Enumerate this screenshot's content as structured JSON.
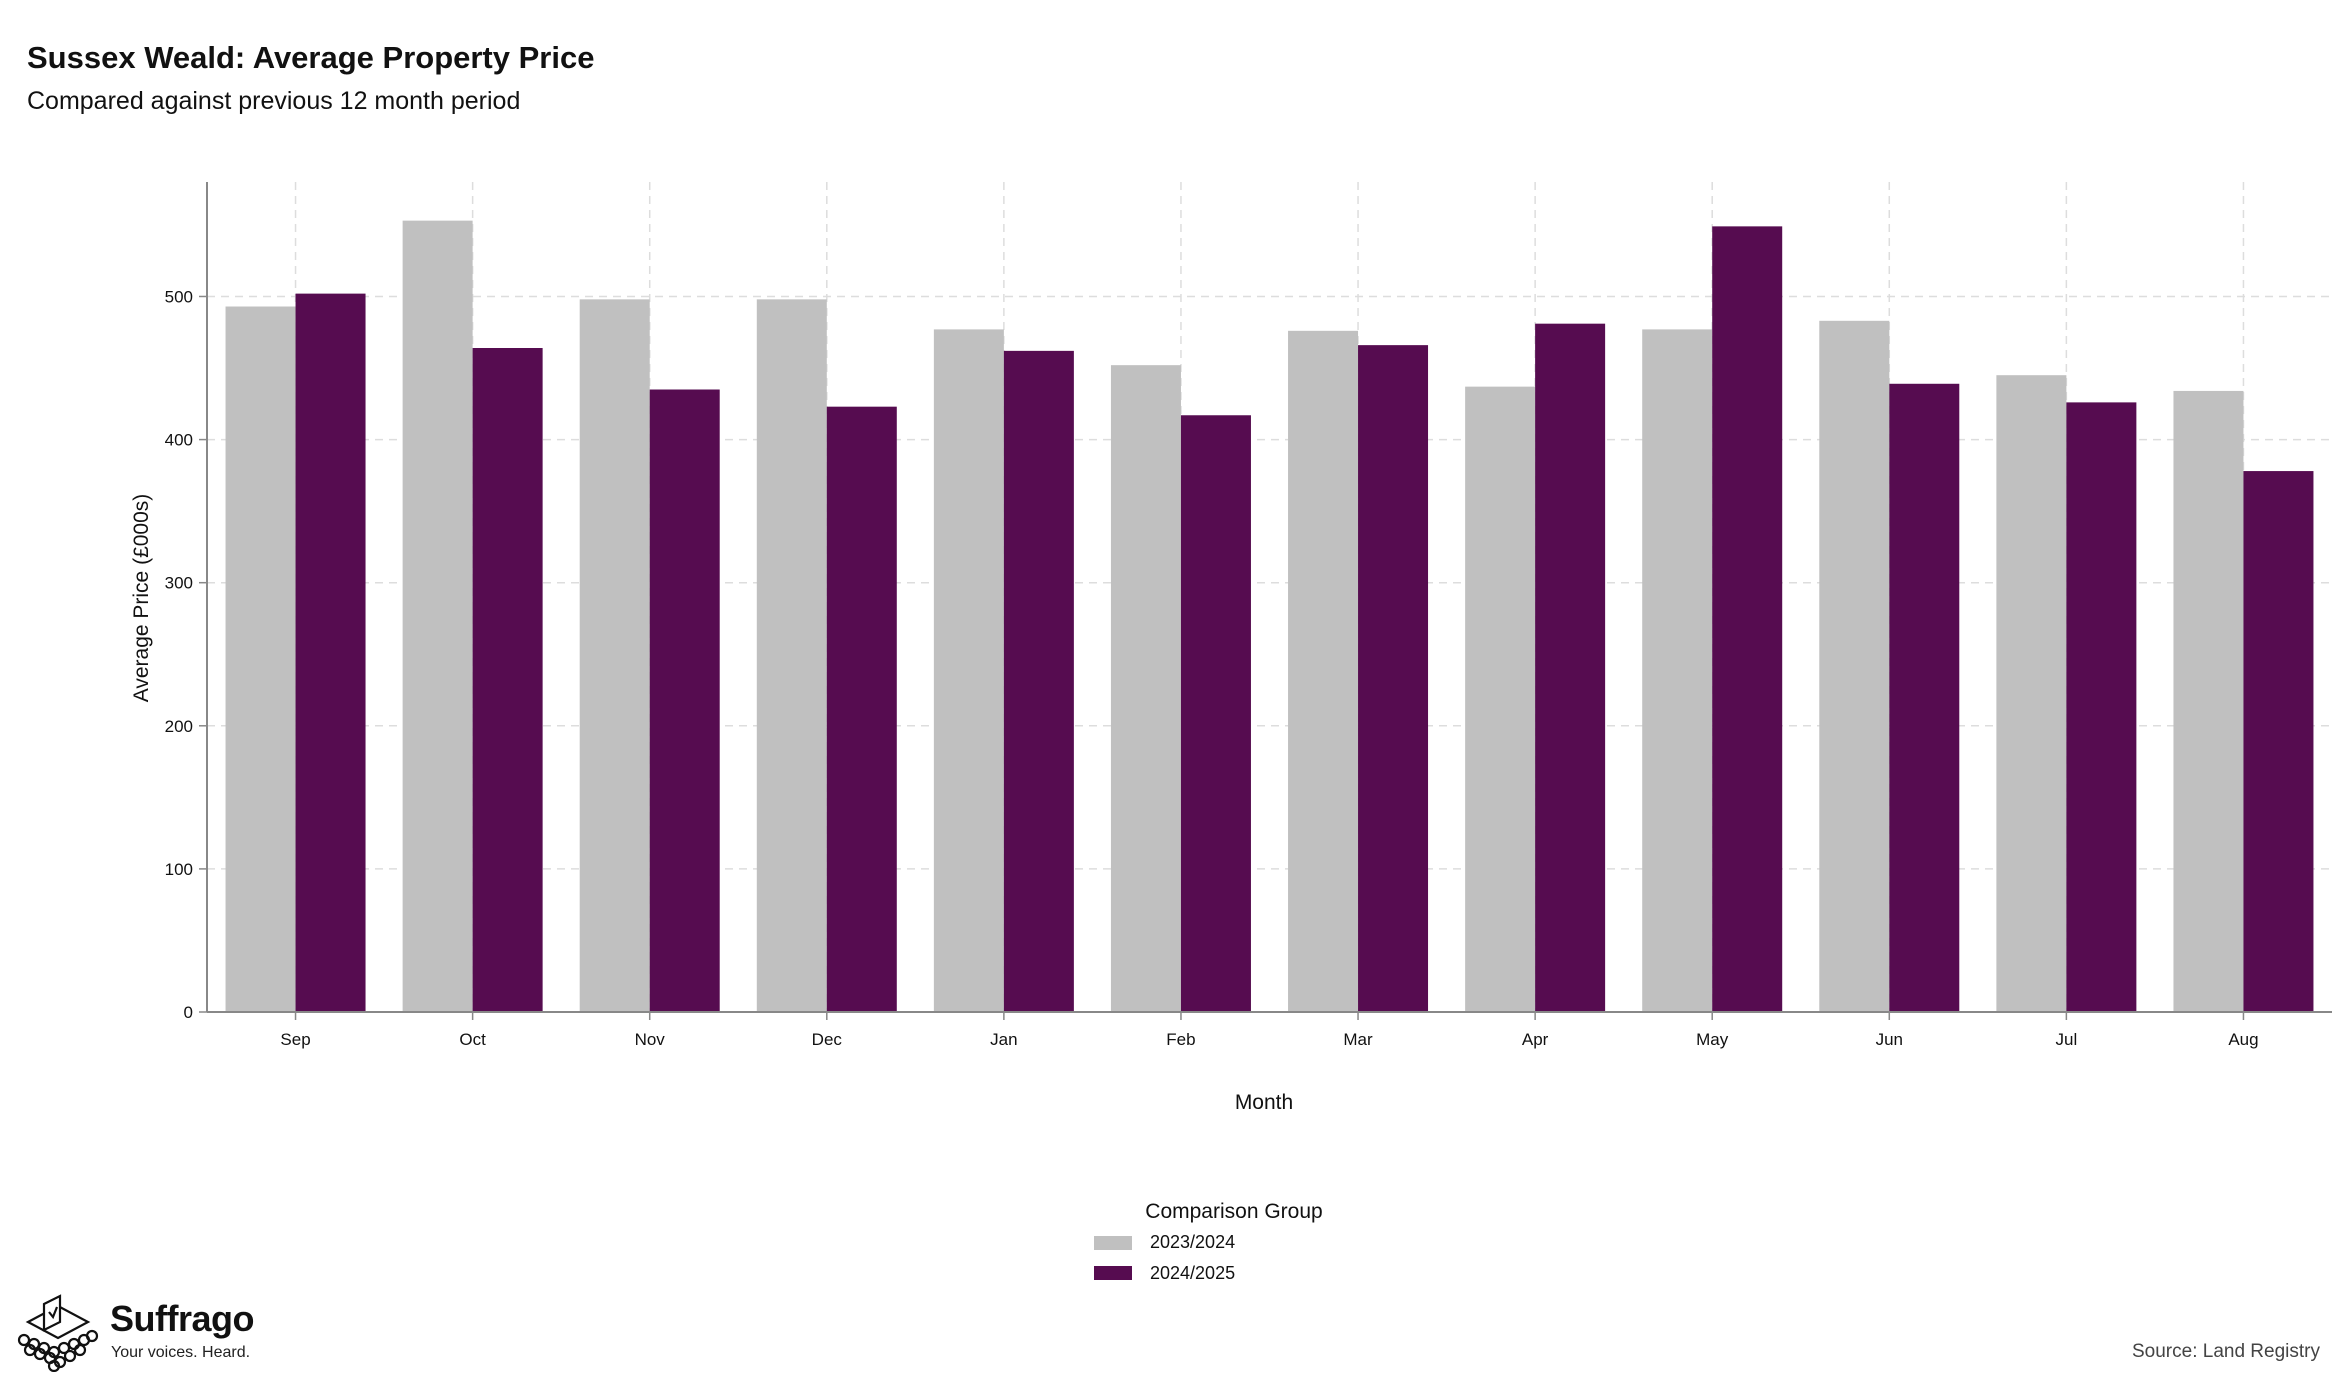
{
  "title": "Sussex Weald: Average Property Price",
  "subtitle": "Compared against previous 12 month period",
  "brand": {
    "name": "Suffrago",
    "tagline": "Your voices. Heard.",
    "icon": "ballot-box-icon"
  },
  "source": "Source: Land Registry",
  "colors": {
    "series_2023_2024": "#c0c0c0",
    "series_2024_2025": "#560c50",
    "grid": "#dddddd",
    "axis": "#888888"
  },
  "chart_data": {
    "type": "bar",
    "xlabel": "Month",
    "ylabel": "Average Price (£000s)",
    "ylim": [
      0,
      580
    ],
    "yticks": [
      0,
      100,
      200,
      300,
      400,
      500
    ],
    "grid": true,
    "legend": {
      "title": "Comparison Group",
      "placement": "bottom-center"
    },
    "categories": [
      "Sep",
      "Oct",
      "Nov",
      "Dec",
      "Jan",
      "Feb",
      "Mar",
      "Apr",
      "May",
      "Jun",
      "Jul",
      "Aug"
    ],
    "series": [
      {
        "name": "2023/2024",
        "values": [
          493,
          553,
          498,
          498,
          477,
          452,
          476,
          437,
          477,
          483,
          445,
          434
        ]
      },
      {
        "name": "2024/2025",
        "values": [
          502,
          464,
          435,
          423,
          462,
          417,
          466,
          481,
          549,
          439,
          426,
          378
        ]
      }
    ]
  }
}
